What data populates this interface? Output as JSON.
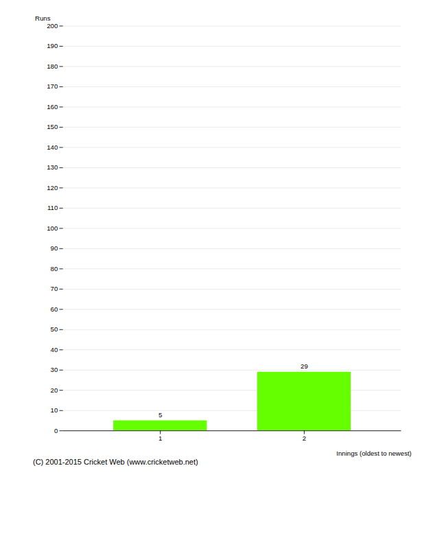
{
  "chart_data": {
    "type": "bar",
    "categories": [
      "1",
      "2"
    ],
    "values": [
      5,
      29
    ],
    "color": "#66ff00",
    "xlabel": "Innings (oldest to newest)",
    "ylabel": "Runs",
    "ylim": [
      0,
      200
    ],
    "yticks": [
      0,
      10,
      20,
      30,
      40,
      50,
      60,
      70,
      80,
      90,
      100,
      110,
      120,
      130,
      140,
      150,
      160,
      170,
      180,
      190,
      200
    ],
    "grid": true,
    "data_labels": true,
    "caption": "(C) 2001-2015 Cricket Web (www.cricketweb.net)"
  }
}
